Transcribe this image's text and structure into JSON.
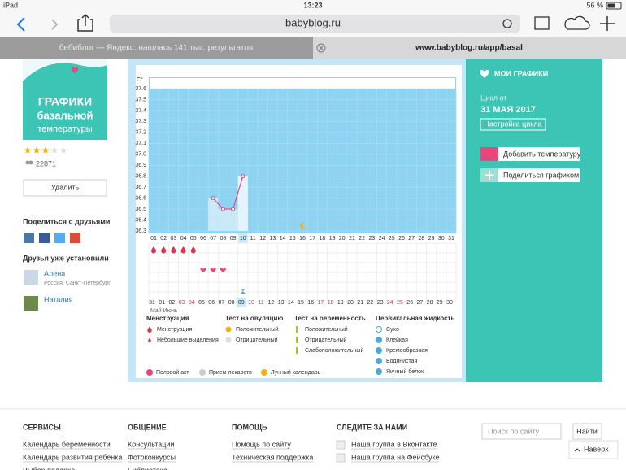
{
  "status_bar": {
    "device": "iPad",
    "time": "13:23",
    "battery": "56 %"
  },
  "browser": {
    "url": "babyblog.ru",
    "tabs": [
      "бебиблог — Яндекс: нашлась 141 тыс. результатов",
      "www.babyblog.ru/app/basal"
    ]
  },
  "sidebar": {
    "app_title": [
      "ГРАФИКИ",
      "базальной",
      "температуры"
    ],
    "rating": 3,
    "rating_max": 5,
    "users": "22871",
    "delete_button": "Удалить",
    "share_title": "Поделиться с друзьями",
    "friends_title": "Друзья уже установили",
    "friends": [
      {
        "name": "Алена",
        "location": "Россия, Санкт-Петербург"
      },
      {
        "name": "Наталия"
      }
    ]
  },
  "chart": {
    "type": "line",
    "ylabel": "C°",
    "color": "#e8467c",
    "categories": [
      "01",
      "02",
      "03",
      "04",
      "05",
      "06",
      "07",
      "08",
      "09",
      "10",
      "11",
      "12",
      "13",
      "14",
      "15",
      "16",
      "17",
      "18",
      "19",
      "20",
      "21",
      "22",
      "23",
      "24",
      "25",
      "26",
      "27",
      "28",
      "29",
      "30",
      "31"
    ],
    "values": [
      null,
      null,
      null,
      null,
      null,
      null,
      36.6,
      36.5,
      36.5,
      36.8,
      null,
      null,
      null,
      null,
      null,
      null,
      null,
      null,
      null,
      null,
      null,
      null,
      null,
      null,
      null,
      null,
      null,
      null,
      null,
      null,
      null
    ],
    "highlight": 9,
    "ylim": [
      36.3,
      37.6
    ],
    "yticks": [
      36.3,
      36.4,
      36.5,
      36.6,
      36.7,
      36.8,
      36.9,
      {
        "value": 37.0,
        "label": "37.0"
      },
      37.1,
      37.2,
      37.3,
      37.4,
      37.5,
      37.6
    ],
    "dates": [
      "31",
      "01",
      "02",
      "03",
      "04",
      "05",
      "06",
      "07",
      "08",
      "09",
      "10",
      "11",
      "12",
      "13",
      "14",
      "15",
      "16",
      "17",
      "18",
      "19",
      "20",
      "21",
      "22",
      "23",
      "24",
      "25",
      "26",
      "27",
      "28",
      "29",
      "30"
    ],
    "date_highlight": 9,
    "weekend_color": "#e0344c",
    "weekends": [
      3,
      4,
      10,
      11,
      17,
      18,
      24,
      25
    ],
    "months": "Май Июнь"
  },
  "legend": {
    "groups": [
      {
        "title": "Менструация",
        "items": [
          "Менструация",
          "Небольшие выделения"
        ]
      },
      {
        "title": "Тест на овуляцию",
        "items": [
          "Положительный",
          "Отрицательный"
        ]
      },
      {
        "title": "Тест на беременность",
        "items": [
          "Положительный",
          "Отрицательный",
          "Слабоположительный"
        ]
      },
      {
        "title": "Цервикальная жидкость",
        "items": [
          "Сухо",
          "Клейкая",
          "Кремообразная",
          "Водянистая",
          "Яичный белок"
        ]
      }
    ],
    "bottom": [
      "Половой акт",
      "Прием лекарств",
      "Лунный календарь"
    ]
  },
  "right_panel": {
    "title": "МОИ ГРАФИКИ",
    "cycle_label": "Цикл от",
    "cycle_date": "31 МАЯ 2017",
    "cycle_button": "Настройка цикла",
    "buttons": [
      "Добавить температуру",
      "Поделиться графиком"
    ]
  },
  "footer": {
    "columns": [
      {
        "title": "СЕРВИСЫ",
        "links": [
          "Календарь беременности",
          "Календарь развития ребенка",
          "Выбор подарка"
        ]
      },
      {
        "title": "ОБЩЕНИЕ",
        "links": [
          "Консультации",
          "Фотоконкурсы",
          "Библиотека"
        ]
      },
      {
        "title": "ПОМОЩЬ",
        "links": [
          "Помощь по сайту",
          "Техническая поддержка"
        ]
      },
      {
        "title": "СЛЕДИТЕ ЗА НАМИ",
        "links": [
          "Наша группа в Вконтакте",
          "Наша группа на Фейсбуке"
        ]
      }
    ],
    "search_placeholder": "Поиск по сайту",
    "search_button": "Найти",
    "top_button": "Наверх"
  }
}
